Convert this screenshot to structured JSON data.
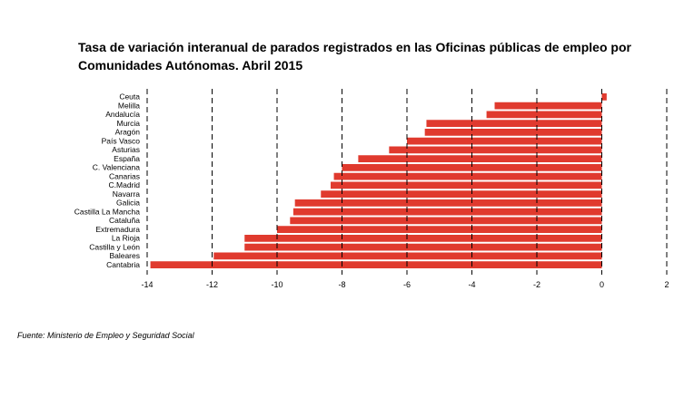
{
  "title_line1": "Tasa de variación interanual de parados registrados en las Oficinas públicas de empleo por",
  "title_line2": "Comunidades Autónomas.  Abril 2015",
  "source": "Fuente: Ministerio de Empleo y Seguridad Social",
  "chart_data": {
    "type": "bar",
    "orientation": "horizontal",
    "categories": [
      "Ceuta",
      "Melilla",
      "Andalucía",
      "Murcia",
      "Aragón",
      "País Vasco",
      "Asturias",
      "España",
      "C. Valenciana",
      "Canarias",
      "C.Madrid",
      "Navarra",
      "Galicia",
      "Castilla La Mancha",
      "Cataluña",
      "Extremadura",
      "La Rioja",
      "Castilla y León",
      "Baleares",
      "Cantabria"
    ],
    "values": [
      0.15,
      -3.3,
      -3.55,
      -5.4,
      -5.45,
      -6.0,
      -6.55,
      -7.5,
      -8.0,
      -8.25,
      -8.35,
      -8.65,
      -9.45,
      -9.5,
      -9.6,
      -10.0,
      -11.0,
      -11.0,
      -11.95,
      -13.9
    ],
    "xlim": [
      -14,
      2
    ],
    "xticks": [
      "-14",
      "-12",
      "-10",
      "-8",
      "-6",
      "-4",
      "-2",
      "0",
      "2"
    ],
    "xtick_values": [
      -14,
      -12,
      -10,
      -8,
      -6,
      -4,
      -2,
      0,
      2
    ],
    "grid": "vertical dashed",
    "bar_color": "#e03a2e"
  }
}
